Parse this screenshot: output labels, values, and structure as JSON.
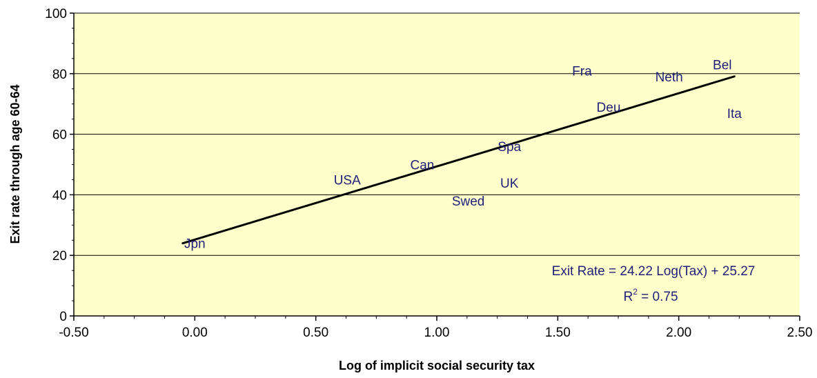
{
  "chart_data": {
    "type": "scatter",
    "xlabel": "Log of implicit social security tax",
    "ylabel": "Exit rate through age 60-64",
    "xlim": [
      -0.5,
      2.5
    ],
    "ylim": [
      0,
      100
    ],
    "x_ticks": [
      "-0.50",
      "0.00",
      "0.50",
      "1.00",
      "1.50",
      "2.00",
      "2.50"
    ],
    "y_ticks": [
      "0",
      "20",
      "40",
      "60",
      "80",
      "100"
    ],
    "grid": "horizontal major gridlines",
    "legend": "none",
    "plot_background": "#FFFFCC",
    "label_color": "#1F1F7A",
    "line_color": "#000000",
    "points": [
      {
        "label": "Jpn",
        "x": 0.0,
        "y": 24
      },
      {
        "label": "USA",
        "x": 0.63,
        "y": 45
      },
      {
        "label": "Can",
        "x": 0.94,
        "y": 50
      },
      {
        "label": "Swed",
        "x": 1.13,
        "y": 38
      },
      {
        "label": "UK",
        "x": 1.3,
        "y": 44
      },
      {
        "label": "Spa",
        "x": 1.3,
        "y": 56
      },
      {
        "label": "Fra",
        "x": 1.6,
        "y": 81
      },
      {
        "label": "Deu",
        "x": 1.71,
        "y": 69
      },
      {
        "label": "Neth",
        "x": 1.96,
        "y": 79
      },
      {
        "label": "Bel",
        "x": 2.18,
        "y": 83
      },
      {
        "label": "Ita",
        "x": 2.23,
        "y": 67
      }
    ],
    "trendline": {
      "x": [
        -0.05,
        2.23
      ],
      "y": [
        24.0,
        79.1
      ]
    },
    "annotation": {
      "equation": "Exit Rate = 24.22 Log(Tax) + 25.27",
      "r2_prefix": "R",
      "r2_sup": "2",
      "r2_suffix": " = 0.75"
    }
  }
}
